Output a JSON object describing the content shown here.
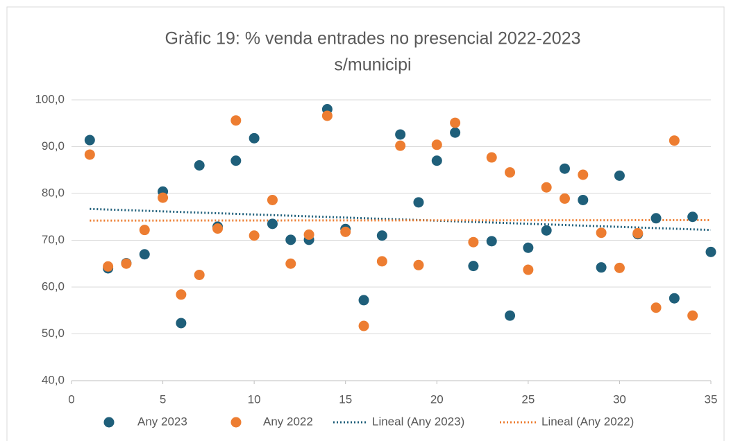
{
  "chart_data": {
    "type": "scatter",
    "title": [
      "Gràfic 19: % venda entrades no presencial 2022-2023",
      "s/municipi"
    ],
    "xlim": [
      0,
      35
    ],
    "xticks": [
      0,
      5,
      10,
      15,
      20,
      25,
      30,
      35
    ],
    "ylim": [
      40,
      100
    ],
    "yticks": [
      {
        "value": 40,
        "label": "40,0"
      },
      {
        "value": 50,
        "label": "50,0"
      },
      {
        "value": 60,
        "label": "60,0"
      },
      {
        "value": 70,
        "label": "70,0"
      },
      {
        "value": 80,
        "label": "80,0"
      },
      {
        "value": 90,
        "label": "90,0"
      },
      {
        "value": 100,
        "label": "100,0"
      }
    ],
    "grid": true,
    "legend": "bottom",
    "series": [
      {
        "name": "Any 2023",
        "color": "#1f5f7a",
        "x": [
          1,
          2,
          3,
          4,
          5,
          6,
          7,
          8,
          9,
          10,
          11,
          12,
          13,
          14,
          15,
          16,
          17,
          18,
          19,
          20,
          21,
          22,
          23,
          24,
          25,
          26,
          27,
          28,
          29,
          30,
          31,
          32,
          33,
          34,
          35
        ],
        "values": [
          91.4,
          64.0,
          65.1,
          67.0,
          80.4,
          52.3,
          86.0,
          72.9,
          87.0,
          91.8,
          73.5,
          70.1,
          70.1,
          98.0,
          72.4,
          57.2,
          71.0,
          92.6,
          78.1,
          87.0,
          93.0,
          64.5,
          69.8,
          53.9,
          68.4,
          72.1,
          85.3,
          78.6,
          64.2,
          83.8,
          71.3,
          74.7,
          57.6,
          75.0,
          67.5
        ]
      },
      {
        "name": "Any 2022",
        "color": "#ed7d31",
        "x": [
          1,
          2,
          3,
          4,
          5,
          6,
          7,
          8,
          9,
          10,
          11,
          12,
          13,
          14,
          15,
          16,
          17,
          18,
          19,
          20,
          21,
          22,
          23,
          24,
          25,
          26,
          27,
          28,
          29,
          30,
          31,
          32,
          33,
          34
        ],
        "values": [
          88.3,
          64.4,
          65.0,
          72.2,
          79.1,
          58.4,
          62.6,
          72.5,
          95.6,
          71.0,
          78.6,
          65.0,
          71.2,
          96.6,
          71.8,
          51.7,
          65.5,
          90.2,
          64.7,
          90.4,
          95.1,
          69.6,
          87.7,
          84.5,
          63.7,
          81.3,
          78.9,
          84.0,
          71.6,
          64.1,
          71.5,
          55.6,
          91.3,
          53.9
        ]
      }
    ],
    "trendlines": [
      {
        "name": "Lineal (Any 2023)",
        "color": "#1f5f7a",
        "x": [
          1,
          35
        ],
        "values": [
          76.7,
          72.2
        ]
      },
      {
        "name": "Lineal (Any 2022)",
        "color": "#ed7d31",
        "x": [
          1,
          35
        ],
        "values": [
          74.2,
          74.3
        ]
      }
    ]
  }
}
